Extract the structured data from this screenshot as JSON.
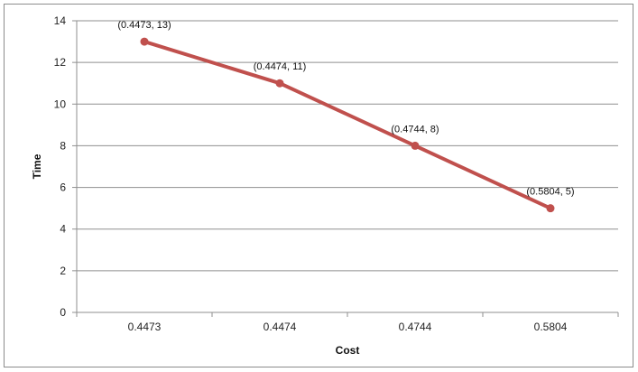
{
  "chart_data": {
    "type": "line",
    "title": "",
    "xlabel": "Cost",
    "ylabel": "Time",
    "categories": [
      "0.4473",
      "0.4474",
      "0.4744",
      "0.5804"
    ],
    "series": [
      {
        "values": [
          13,
          11,
          8,
          5
        ],
        "color": "#c0504d",
        "data_labels": [
          "(0.4473, 13)",
          "(0.4474, 11)",
          "(0.4744, 8)",
          "(0.5804, 5)"
        ]
      }
    ],
    "ylim": [
      0,
      14
    ],
    "yticks": [
      0,
      2,
      4,
      6,
      8,
      10,
      12,
      14
    ],
    "grid": true,
    "legend": "none"
  }
}
